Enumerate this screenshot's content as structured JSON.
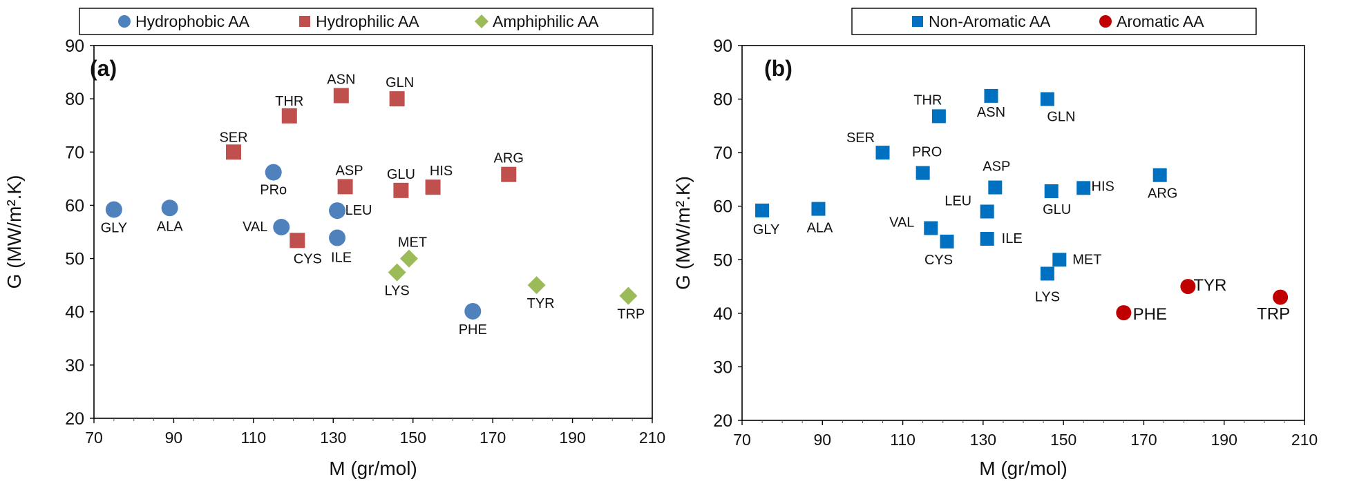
{
  "chart_data": [
    {
      "type": "scatter",
      "panel_label": "(a)",
      "xlabel": "M (gr/mol)",
      "ylabel": "G (MW/m².K)",
      "xlim": [
        70,
        210
      ],
      "ylim": [
        20,
        90
      ],
      "xticks": [
        70,
        90,
        110,
        130,
        150,
        170,
        190,
        210
      ],
      "yticks": [
        20,
        30,
        40,
        50,
        60,
        70,
        80,
        90
      ],
      "legend_position": "top",
      "grid": false,
      "series": [
        {
          "name": "Hydrophobic AA",
          "marker": "circle",
          "color": "#4f81bd",
          "points": [
            {
              "label": "GLY",
              "x": 75,
              "y": 59.2
            },
            {
              "label": "ALA",
              "x": 89,
              "y": 59.5
            },
            {
              "label": "PRo",
              "x": 115,
              "y": 66.2
            },
            {
              "label": "VAL",
              "x": 117,
              "y": 55.9
            },
            {
              "label": "LEU",
              "x": 131,
              "y": 59.0
            },
            {
              "label": "ILE",
              "x": 131,
              "y": 53.9
            },
            {
              "label": "PHE",
              "x": 165,
              "y": 40.1
            }
          ]
        },
        {
          "name": "Hydrophilic AA",
          "marker": "square",
          "color": "#c0504d",
          "points": [
            {
              "label": "SER",
              "x": 105,
              "y": 70.0
            },
            {
              "label": "THR",
              "x": 119,
              "y": 76.8
            },
            {
              "label": "CYS",
              "x": 121,
              "y": 53.4
            },
            {
              "label": "ASN",
              "x": 132,
              "y": 80.6
            },
            {
              "label": "ASP",
              "x": 133,
              "y": 63.5
            },
            {
              "label": "GLN",
              "x": 146,
              "y": 80.0
            },
            {
              "label": "GLU",
              "x": 147,
              "y": 62.8
            },
            {
              "label": "HIS",
              "x": 155,
              "y": 63.4
            },
            {
              "label": "ARG",
              "x": 174,
              "y": 65.8
            }
          ]
        },
        {
          "name": "Amphiphilic AA",
          "marker": "diamond",
          "color": "#9bbb59",
          "points": [
            {
              "label": "LYS",
              "x": 146,
              "y": 47.4
            },
            {
              "label": "MET",
              "x": 149,
              "y": 50.0
            },
            {
              "label": "TYR",
              "x": 181,
              "y": 45.0
            },
            {
              "label": "TRP",
              "x": 204,
              "y": 43.0
            }
          ]
        }
      ]
    },
    {
      "type": "scatter",
      "panel_label": "(b)",
      "xlabel": "M (gr/mol)",
      "ylabel": "G (MW/m².K)",
      "xlim": [
        70,
        210
      ],
      "ylim": [
        20,
        90
      ],
      "xticks": [
        70,
        90,
        110,
        130,
        150,
        170,
        190,
        210
      ],
      "yticks": [
        20,
        30,
        40,
        50,
        60,
        70,
        80,
        90
      ],
      "legend_position": "top",
      "grid": false,
      "series": [
        {
          "name": "Non-Aromatic AA",
          "marker": "square",
          "color": "#0070c0",
          "points": [
            {
              "label": "GLY",
              "x": 75,
              "y": 59.2
            },
            {
              "label": "ALA",
              "x": 89,
              "y": 59.5
            },
            {
              "label": "SER",
              "x": 105,
              "y": 70.0
            },
            {
              "label": "PRO",
              "x": 115,
              "y": 66.2
            },
            {
              "label": "VAL",
              "x": 117,
              "y": 55.9
            },
            {
              "label": "THR",
              "x": 119,
              "y": 76.8
            },
            {
              "label": "CYS",
              "x": 121,
              "y": 53.4
            },
            {
              "label": "LEU",
              "x": 131,
              "y": 59.0
            },
            {
              "label": "ILE",
              "x": 131,
              "y": 53.9
            },
            {
              "label": "ASN",
              "x": 132,
              "y": 80.6
            },
            {
              "label": "ASP",
              "x": 133,
              "y": 63.5
            },
            {
              "label": "LYS",
              "x": 146,
              "y": 47.4
            },
            {
              "label": "GLN",
              "x": 146,
              "y": 80.0
            },
            {
              "label": "GLU",
              "x": 147,
              "y": 62.8
            },
            {
              "label": "MET",
              "x": 149,
              "y": 50.0
            },
            {
              "label": "HIS",
              "x": 155,
              "y": 63.4
            },
            {
              "label": "ARG",
              "x": 174,
              "y": 65.8
            }
          ]
        },
        {
          "name": "Aromatic AA",
          "marker": "circle",
          "color": "#c00000",
          "points": [
            {
              "label": "PHE",
              "x": 165,
              "y": 40.1
            },
            {
              "label": "TYR",
              "x": 181,
              "y": 45.0
            },
            {
              "label": "TRP",
              "x": 204,
              "y": 43.0
            }
          ]
        }
      ]
    }
  ]
}
